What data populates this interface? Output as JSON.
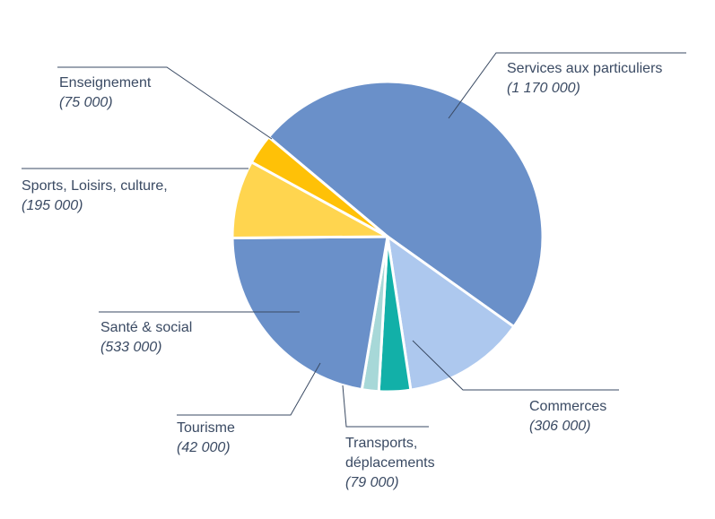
{
  "chart_data": {
    "type": "pie",
    "title": "",
    "slices": [
      {
        "label": "Services aux particuliers",
        "value_label": "(1 170 000)",
        "value": 1170000,
        "color": "#6a90c9"
      },
      {
        "label": "Commerces",
        "value_label": "(306 000)",
        "value": 306000,
        "color": "#adc8ee"
      },
      {
        "label": "Transports,",
        "label2": "déplacements",
        "value_label": "(79 000)",
        "value": 79000,
        "color": "#12b0a8"
      },
      {
        "label": "Tourisme",
        "value_label": "(42 000)",
        "value": 42000,
        "color": "#a7d8d8"
      },
      {
        "label": "Santé & social",
        "value_label": "(533 000)",
        "value": 533000,
        "color": "#6a90c9"
      },
      {
        "label": "Sports, Loisirs, culture,",
        "value_label": "(195 000)",
        "value": 195000,
        "color": "#ffd54f"
      },
      {
        "label": "Enseignement",
        "value_label": "(75 000)",
        "value": 75000,
        "color": "#ffc107"
      }
    ]
  }
}
